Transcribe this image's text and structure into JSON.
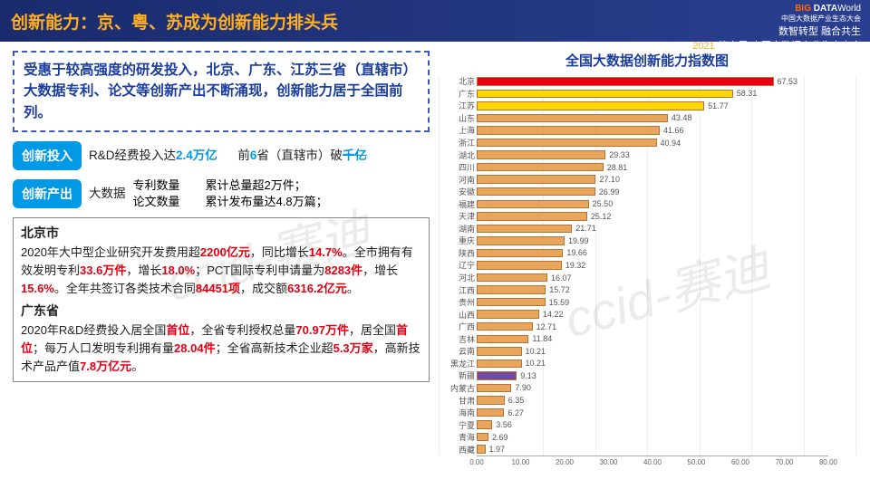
{
  "header": {
    "title": "创新能力：京、粤、苏成为创新能力排头兵",
    "logo_text": "BIG DATA World",
    "logo_sub": "中国大数据产业生态大会",
    "tagline1": "数智转型 融合共生",
    "tagline2_year": "2021",
    "tagline2_rest": "(第六届)中国大数据产业生态大会"
  },
  "summary": "受惠于较高强度的研发投入，北京、广东、江苏三省（直辖市）大数据专利、论文等创新产出不断涌现，创新能力居于全国前列。",
  "input": {
    "tag": "创新投入",
    "line1_a": "R&D经费投入达",
    "line1_hl": "2.4万亿",
    "line2_a": "前",
    "line2_hl1": "6",
    "line2_b": "省（直辖市）破",
    "line2_hl2": "千亿"
  },
  "output": {
    "tag": "创新产出",
    "label": "大数据",
    "col1_a": "专利数量",
    "col1_b": "论文数量",
    "col2_a": "累计总量超2万件；",
    "col2_b": "累计发布量达4.8万篇；"
  },
  "beijing": {
    "title": "北京市",
    "body_parts": [
      {
        "t": "2020年大中型企业研究开发费用超"
      },
      {
        "t": "2200亿元",
        "r": 1
      },
      {
        "t": "，同比增长"
      },
      {
        "t": "14.7%",
        "r": 1
      },
      {
        "t": "。全市拥有有效发明专利"
      },
      {
        "t": "33.6万件",
        "r": 1
      },
      {
        "t": "，增长"
      },
      {
        "t": "18.0%",
        "r": 1
      },
      {
        "t": "；PCT国际专利申请量为"
      },
      {
        "t": "8283件",
        "r": 1
      },
      {
        "t": "，增长"
      },
      {
        "t": "15.6%",
        "r": 1
      },
      {
        "t": "。全年共签订各类技术合同"
      },
      {
        "t": "84451项",
        "r": 1
      },
      {
        "t": "，成交额"
      },
      {
        "t": "6316.2亿元",
        "r": 1
      },
      {
        "t": "。"
      }
    ]
  },
  "guangdong": {
    "title": "广东省",
    "body_parts": [
      {
        "t": "2020年R&D经费投入居全国"
      },
      {
        "t": "首位",
        "r": 1
      },
      {
        "t": "，全省专利授权总量"
      },
      {
        "t": "70.97万件",
        "r": 1
      },
      {
        "t": "，居全国"
      },
      {
        "t": "首位",
        "r": 1
      },
      {
        "t": "；每万人口发明专利拥有量"
      },
      {
        "t": "28.04件",
        "r": 1
      },
      {
        "t": "；全省高新技术企业超"
      },
      {
        "t": "5.3万家",
        "r": 1
      },
      {
        "t": "，高新技术产品产值"
      },
      {
        "t": "7.8万亿元",
        "r": 1
      },
      {
        "t": "。"
      }
    ]
  },
  "chart": {
    "title": "全国大数据创新能力指数图",
    "xmax": 80,
    "xtick_step": 10,
    "xticks": [
      "0.00",
      "10.00",
      "20.00",
      "30.00",
      "40.00",
      "50.00",
      "60.00",
      "70.00",
      "80.00"
    ],
    "bar_border": "#b87333",
    "default_color": "#e8a55c",
    "bars": [
      {
        "label": "北京",
        "value": 67.53,
        "color": "#e60012"
      },
      {
        "label": "广东",
        "value": 58.31,
        "color": "#ffd700"
      },
      {
        "label": "江苏",
        "value": 51.77,
        "color": "#ffd700"
      },
      {
        "label": "山东",
        "value": 43.48
      },
      {
        "label": "上海",
        "value": 41.66
      },
      {
        "label": "浙江",
        "value": 40.94
      },
      {
        "label": "湖北",
        "value": 29.33
      },
      {
        "label": "四川",
        "value": 28.81
      },
      {
        "label": "河南",
        "value": 27.1
      },
      {
        "label": "安徽",
        "value": 26.99
      },
      {
        "label": "福建",
        "value": 25.5
      },
      {
        "label": "天津",
        "value": 25.12
      },
      {
        "label": "湖南",
        "value": 21.71
      },
      {
        "label": "重庆",
        "value": 19.99
      },
      {
        "label": "陕西",
        "value": 19.66
      },
      {
        "label": "辽宁",
        "value": 19.32
      },
      {
        "label": "河北",
        "value": 16.07
      },
      {
        "label": "江西",
        "value": 15.72
      },
      {
        "label": "贵州",
        "value": 15.59
      },
      {
        "label": "山西",
        "value": 14.22
      },
      {
        "label": "广西",
        "value": 12.71
      },
      {
        "label": "吉林",
        "value": 11.84
      },
      {
        "label": "云南",
        "value": 10.21
      },
      {
        "label": "黑龙江",
        "value": 10.21
      },
      {
        "label": "新疆",
        "value": 9.13,
        "color": "#6b4ba3"
      },
      {
        "label": "内蒙古",
        "value": 7.9
      },
      {
        "label": "甘肃",
        "value": 6.35
      },
      {
        "label": "海南",
        "value": 6.27
      },
      {
        "label": "宁夏",
        "value": 3.56
      },
      {
        "label": "青海",
        "value": 2.69
      },
      {
        "label": "西藏",
        "value": 1.97
      }
    ]
  },
  "watermark": "ccid-赛迪"
}
